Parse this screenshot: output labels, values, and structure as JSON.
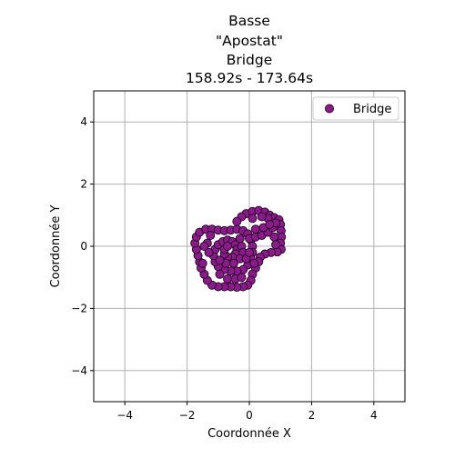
{
  "chart_data": {
    "type": "scatter",
    "title_lines": [
      "Basse",
      "\"Apostat\"",
      "Bridge",
      "158.92s - 173.64s"
    ],
    "xlabel": "Coordonnée X",
    "ylabel": "Coordonnée Y",
    "xlim": [
      -5,
      5
    ],
    "ylim": [
      -5,
      5
    ],
    "xticks": [
      -4,
      -2,
      0,
      2,
      4
    ],
    "yticks": [
      -4,
      -2,
      0,
      2,
      4
    ],
    "xtick_labels": [
      "−4",
      "−2",
      "0",
      "2",
      "4"
    ],
    "ytick_labels": [
      "−4",
      "−2",
      "0",
      "2",
      "4"
    ],
    "grid": true,
    "legend_position": "top-right",
    "colors": {
      "marker_fill": "#8b1a8b",
      "marker_edge": "#2a0a2a",
      "grid": "#b0b0b0"
    },
    "series": [
      {
        "name": "Bridge",
        "points": [
          [
            -0.1,
            1.05
          ],
          [
            0.1,
            1.12
          ],
          [
            0.3,
            1.15
          ],
          [
            0.5,
            1.1
          ],
          [
            0.65,
            1.0
          ],
          [
            0.8,
            0.92
          ],
          [
            0.95,
            0.85
          ],
          [
            1.0,
            0.7
          ],
          [
            1.02,
            0.5
          ],
          [
            1.03,
            0.3
          ],
          [
            1.0,
            0.1
          ],
          [
            1.02,
            -0.1
          ],
          [
            0.9,
            -0.18
          ],
          [
            0.7,
            -0.2
          ],
          [
            0.5,
            -0.25
          ],
          [
            0.35,
            -0.35
          ],
          [
            0.3,
            -0.5
          ],
          [
            0.2,
            -0.7
          ],
          [
            0.1,
            -0.9
          ],
          [
            0.05,
            -1.1
          ],
          [
            -0.05,
            -1.25
          ],
          [
            -0.2,
            -1.3
          ],
          [
            -0.4,
            -1.32
          ],
          [
            -0.6,
            -1.3
          ],
          [
            -0.8,
            -1.3
          ],
          [
            -1.0,
            -1.3
          ],
          [
            -1.2,
            -1.25
          ],
          [
            -1.35,
            -1.1
          ],
          [
            -1.45,
            -0.9
          ],
          [
            -1.55,
            -0.7
          ],
          [
            -1.6,
            -0.5
          ],
          [
            -1.65,
            -0.3
          ],
          [
            -1.7,
            -0.1
          ],
          [
            -1.75,
            0.1
          ],
          [
            -1.7,
            0.3
          ],
          [
            -1.6,
            0.45
          ],
          [
            -1.4,
            0.55
          ],
          [
            -1.2,
            0.55
          ],
          [
            -1.0,
            0.52
          ],
          [
            -0.8,
            0.5
          ],
          [
            -0.6,
            0.52
          ],
          [
            -0.4,
            0.55
          ],
          [
            -0.2,
            0.5
          ],
          [
            -0.05,
            0.4
          ],
          [
            0.05,
            0.2
          ],
          [
            0.1,
            0.0
          ],
          [
            0.1,
            -0.2
          ],
          [
            0.05,
            -0.4
          ],
          [
            -0.05,
            -0.6
          ],
          [
            -0.2,
            -0.75
          ],
          [
            -0.4,
            -0.8
          ],
          [
            -0.6,
            -0.8
          ],
          [
            -0.8,
            -0.75
          ],
          [
            -1.0,
            -0.65
          ],
          [
            -1.1,
            -0.5
          ],
          [
            -1.15,
            -0.3
          ],
          [
            -1.1,
            -0.1
          ],
          [
            -1.0,
            0.05
          ],
          [
            -0.85,
            0.15
          ],
          [
            -0.7,
            0.2
          ],
          [
            -0.55,
            0.15
          ],
          [
            -0.45,
            0.05
          ],
          [
            -0.4,
            -0.1
          ],
          [
            -0.45,
            -0.25
          ],
          [
            -0.55,
            -0.35
          ],
          [
            -0.7,
            -0.35
          ],
          [
            -0.8,
            -0.25
          ],
          [
            -0.8,
            -0.1
          ],
          [
            -0.7,
            0.0
          ],
          [
            -0.3,
            0.25
          ],
          [
            -0.25,
            0.0
          ],
          [
            -0.2,
            -0.2
          ],
          [
            -0.3,
            -0.4
          ],
          [
            -0.5,
            -0.55
          ],
          [
            -0.75,
            -0.55
          ],
          [
            -0.95,
            -0.45
          ],
          [
            -1.3,
            -0.2
          ],
          [
            -1.35,
            0.1
          ],
          [
            -1.25,
            0.35
          ],
          [
            -0.95,
            -0.9
          ],
          [
            -0.7,
            -1.05
          ],
          [
            -0.45,
            -1.05
          ],
          [
            -0.25,
            -1.0
          ],
          [
            -0.1,
            -0.4
          ],
          [
            0.0,
            -0.2
          ],
          [
            0.0,
            0.25
          ],
          [
            0.2,
            0.3
          ],
          [
            0.4,
            0.35
          ],
          [
            0.6,
            0.45
          ],
          [
            0.75,
            0.6
          ],
          [
            0.85,
            0.75
          ],
          [
            0.6,
            0.9
          ],
          [
            0.4,
            0.95
          ],
          [
            -0.25,
            0.95
          ],
          [
            -0.4,
            0.8
          ],
          [
            0.2,
            0.55
          ],
          [
            0.45,
            0.6
          ],
          [
            0.65,
            0.7
          ],
          [
            0.8,
            0.3
          ],
          [
            0.85,
            0.05
          ],
          [
            0.15,
            -0.55
          ],
          [
            0.1,
            0.9
          ],
          [
            -1.5,
            -0.55
          ],
          [
            -1.45,
            0.0
          ]
        ]
      }
    ]
  }
}
